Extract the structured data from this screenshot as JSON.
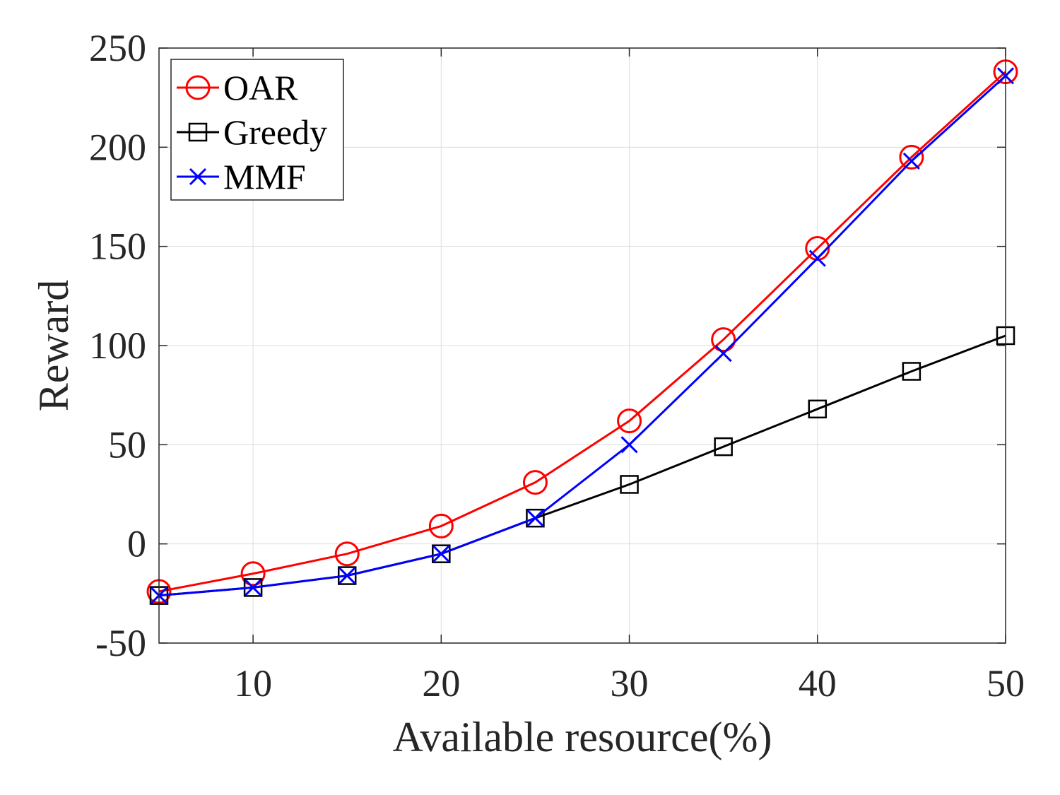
{
  "chart_data": {
    "type": "line",
    "title": "",
    "xlabel": "Available resource(%)",
    "ylabel": "Reward",
    "xlim": [
      5,
      50
    ],
    "ylim": [
      -50,
      250
    ],
    "xticks": [
      10,
      20,
      30,
      40,
      50
    ],
    "yticks": [
      -50,
      0,
      50,
      100,
      150,
      200,
      250
    ],
    "grid": true,
    "legend_position": "top-left",
    "x": [
      5,
      10,
      15,
      20,
      25,
      30,
      35,
      40,
      45,
      50
    ],
    "series": [
      {
        "name": "OAR",
        "color": "#ff0000",
        "marker": "circle",
        "values": [
          -24,
          -15,
          -5,
          9,
          31,
          62,
          103,
          149,
          195,
          238
        ]
      },
      {
        "name": "Greedy",
        "color": "#000000",
        "marker": "square",
        "values": [
          -26,
          -22,
          -16,
          -5,
          13,
          30,
          49,
          68,
          87,
          105
        ]
      },
      {
        "name": "MMF",
        "color": "#0000ff",
        "marker": "x",
        "values": [
          -26,
          -22,
          -16,
          -5,
          13,
          50,
          96,
          144,
          193,
          236
        ]
      }
    ]
  }
}
